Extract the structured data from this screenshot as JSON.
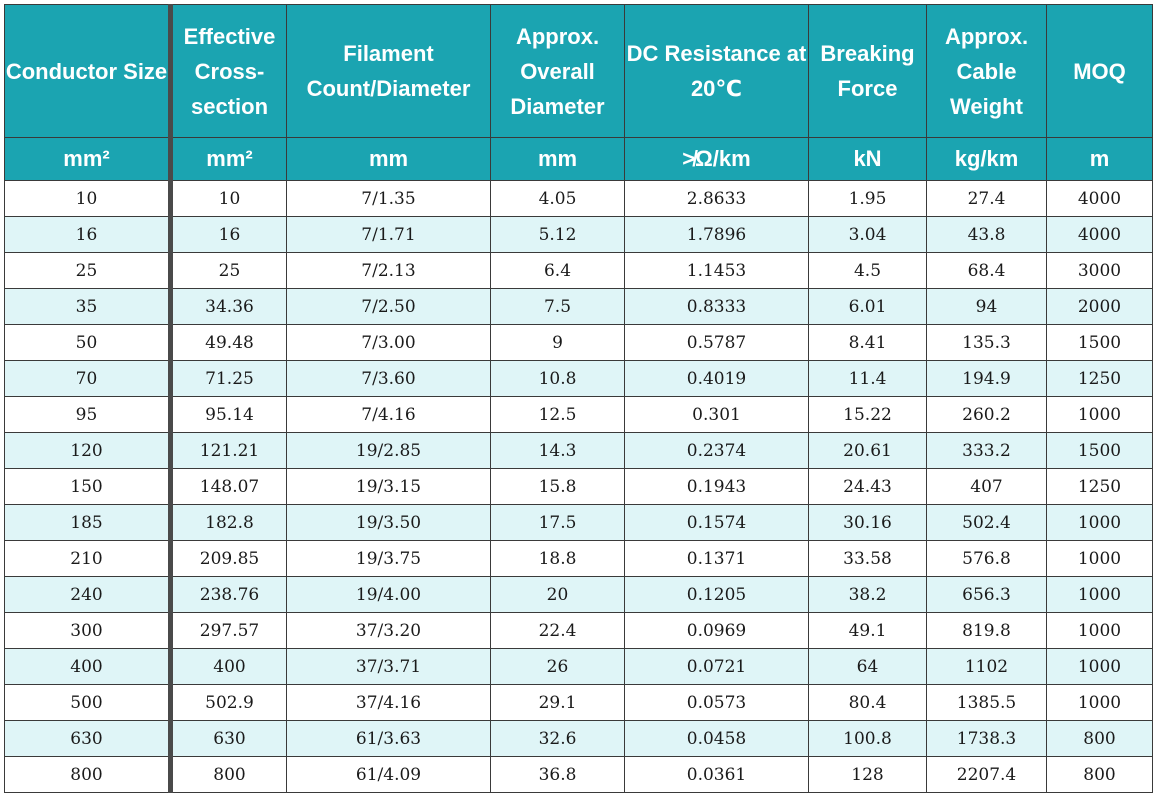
{
  "headers": [
    "Conductor Size",
    "Effective Cross-section",
    "Filament Count/Diameter",
    "Approx. Overall Diameter",
    "DC Resistance at 20℃",
    "Breaking Force",
    "Approx. Cable Weight",
    "MOQ"
  ],
  "units": [
    "mm²",
    "mm²",
    "mm",
    "mm",
    "≯Ω/km",
    "kN",
    "kg/km",
    "m"
  ],
  "rows": [
    [
      "10",
      "10",
      "7/1.35",
      "4.05",
      "2.8633",
      "1.95",
      "27.4",
      "4000"
    ],
    [
      "16",
      "16",
      "7/1.71",
      "5.12",
      "1.7896",
      "3.04",
      "43.8",
      "4000"
    ],
    [
      "25",
      "25",
      "7/2.13",
      "6.4",
      "1.1453",
      "4.5",
      "68.4",
      "3000"
    ],
    [
      "35",
      "34.36",
      "7/2.50",
      "7.5",
      "0.8333",
      "6.01",
      "94",
      "2000"
    ],
    [
      "50",
      "49.48",
      "7/3.00",
      "9",
      "0.5787",
      "8.41",
      "135.3",
      "1500"
    ],
    [
      "70",
      "71.25",
      "7/3.60",
      "10.8",
      "0.4019",
      "11.4",
      "194.9",
      "1250"
    ],
    [
      "95",
      "95.14",
      "7/4.16",
      "12.5",
      "0.301",
      "15.22",
      "260.2",
      "1000"
    ],
    [
      "120",
      "121.21",
      "19/2.85",
      "14.3",
      "0.2374",
      "20.61",
      "333.2",
      "1500"
    ],
    [
      "150",
      "148.07",
      "19/3.15",
      "15.8",
      "0.1943",
      "24.43",
      "407",
      "1250"
    ],
    [
      "185",
      "182.8",
      "19/3.50",
      "17.5",
      "0.1574",
      "30.16",
      "502.4",
      "1000"
    ],
    [
      "210",
      "209.85",
      "19/3.75",
      "18.8",
      "0.1371",
      "33.58",
      "576.8",
      "1000"
    ],
    [
      "240",
      "238.76",
      "19/4.00",
      "20",
      "0.1205",
      "38.2",
      "656.3",
      "1000"
    ],
    [
      "300",
      "297.57",
      "37/3.20",
      "22.4",
      "0.0969",
      "49.1",
      "819.8",
      "1000"
    ],
    [
      "400",
      "400",
      "37/3.71",
      "26",
      "0.0721",
      "64",
      "1102",
      "1000"
    ],
    [
      "500",
      "502.9",
      "37/4.16",
      "29.1",
      "0.0573",
      "80.4",
      "1385.5",
      "1000"
    ],
    [
      "630",
      "630",
      "61/3.63",
      "32.6",
      "0.0458",
      "100.8",
      "1738.3",
      "800"
    ],
    [
      "800",
      "800",
      "61/4.09",
      "36.8",
      "0.0361",
      "128",
      "2207.4",
      "800"
    ]
  ]
}
